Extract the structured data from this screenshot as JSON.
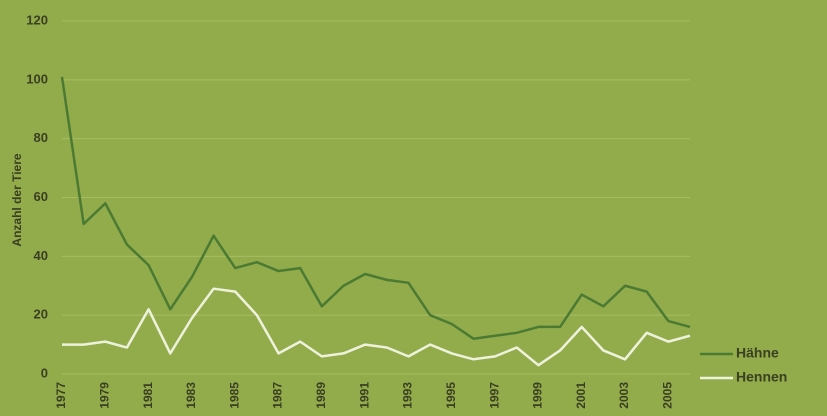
{
  "chart_data": {
    "type": "line",
    "y_label": "Anzahl der Tiere",
    "categories": [
      "1977",
      null,
      "1979",
      null,
      "1981",
      null,
      "1983",
      null,
      "1985",
      null,
      "1987",
      null,
      "1989",
      null,
      "1991",
      null,
      "1993",
      null,
      "1995",
      null,
      "1997",
      null,
      "1999",
      null,
      "2001",
      null,
      "2003",
      null,
      "2005",
      null
    ],
    "series": [
      {
        "name": "Hähne",
        "color": "#4b7a33",
        "values": [
          101,
          51,
          58,
          44,
          37,
          22,
          33,
          47,
          36,
          38,
          35,
          36,
          23,
          30,
          34,
          32,
          31,
          20,
          17,
          12,
          13,
          14,
          16,
          16,
          27,
          23,
          30,
          28,
          18,
          16
        ]
      },
      {
        "name": "Hennen",
        "color": "#eef2dc",
        "values": [
          10,
          10,
          11,
          9,
          22,
          7,
          19,
          29,
          28,
          20,
          7,
          11,
          6,
          7,
          10,
          9,
          6,
          10,
          7,
          5,
          6,
          9,
          3,
          8,
          16,
          8,
          5,
          14,
          11,
          13
        ]
      }
    ],
    "ylim": [
      0,
      120
    ],
    "yticks": [
      0,
      20,
      40,
      60,
      80,
      100,
      120
    ],
    "grid": true,
    "legend": "bottom-right"
  }
}
